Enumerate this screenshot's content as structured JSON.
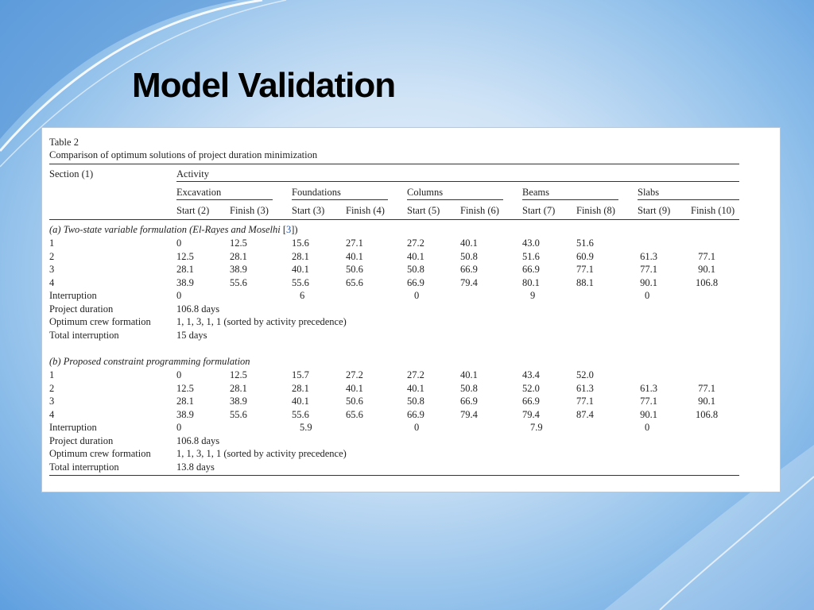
{
  "slide": {
    "title": "Model Validation"
  },
  "table": {
    "label": "Table 2",
    "caption": "Comparison of optimum solutions of project duration minimization",
    "section_header": "Section (1)",
    "activity_header": "Activity",
    "activities": [
      "Excavation",
      "Foundations",
      "Columns",
      "Beams",
      "Slabs"
    ],
    "subheaders": [
      "Start (2)",
      "Finish (3)",
      "Start (3)",
      "Finish (4)",
      "Start (5)",
      "Finish (6)",
      "Start (7)",
      "Finish (8)",
      "Start (9)",
      "Finish (10)"
    ],
    "sections": [
      {
        "title_prefix": "(a) Two-state variable formulation (El-Rayes and Moselhi ",
        "title_ref": "3",
        "title_suffix": ")",
        "rows": [
          {
            "label": "1",
            "values": [
              "0",
              "12.5",
              "15.6",
              "27.1",
              "27.2",
              "40.1",
              "43.0",
              "51.6",
              "",
              ""
            ]
          },
          {
            "label": "2",
            "values": [
              "12.5",
              "28.1",
              "28.1",
              "40.1",
              "40.1",
              "50.8",
              "51.6",
              "60.9",
              "61.3",
              "77.1"
            ]
          },
          {
            "label": "3",
            "values": [
              "28.1",
              "38.9",
              "40.1",
              "50.6",
              "50.8",
              "66.9",
              "66.9",
              "77.1",
              "77.1",
              "90.1"
            ]
          },
          {
            "label": "4",
            "values": [
              "38.9",
              "55.6",
              "55.6",
              "65.6",
              "66.9",
              "79.4",
              "80.1",
              "88.1",
              "90.1",
              "106.8"
            ]
          }
        ],
        "interruption_label": "Interruption",
        "interruptions": [
          "0",
          "6",
          "0",
          "9",
          "0"
        ],
        "summary": [
          {
            "label": "Project duration",
            "value": "106.8 days"
          },
          {
            "label": "Optimum crew formation",
            "value": "1, 1, 3, 1, 1 (sorted by activity precedence)"
          },
          {
            "label": "Total interruption",
            "value": "15 days"
          }
        ]
      },
      {
        "title_prefix": "(b) Proposed constraint programming formulation",
        "title_ref": "",
        "title_suffix": "",
        "rows": [
          {
            "label": "1",
            "values": [
              "0",
              "12.5",
              "15.7",
              "27.2",
              "27.2",
              "40.1",
              "43.4",
              "52.0",
              "",
              ""
            ]
          },
          {
            "label": "2",
            "values": [
              "12.5",
              "28.1",
              "28.1",
              "40.1",
              "40.1",
              "50.8",
              "52.0",
              "61.3",
              "61.3",
              "77.1"
            ]
          },
          {
            "label": "3",
            "values": [
              "28.1",
              "38.9",
              "40.1",
              "50.6",
              "50.8",
              "66.9",
              "66.9",
              "77.1",
              "77.1",
              "90.1"
            ]
          },
          {
            "label": "4",
            "values": [
              "38.9",
              "55.6",
              "55.6",
              "65.6",
              "66.9",
              "79.4",
              "79.4",
              "87.4",
              "90.1",
              "106.8"
            ]
          }
        ],
        "interruption_label": "Interruption",
        "interruptions": [
          "0",
          "5.9",
          "0",
          "7.9",
          "0"
        ],
        "summary": [
          {
            "label": "Project duration",
            "value": "106.8 days"
          },
          {
            "label": "Optimum crew formation",
            "value": "1, 1, 3, 1, 1 (sorted by activity precedence)"
          },
          {
            "label": "Total interruption",
            "value": "13.8 days"
          }
        ]
      }
    ]
  }
}
